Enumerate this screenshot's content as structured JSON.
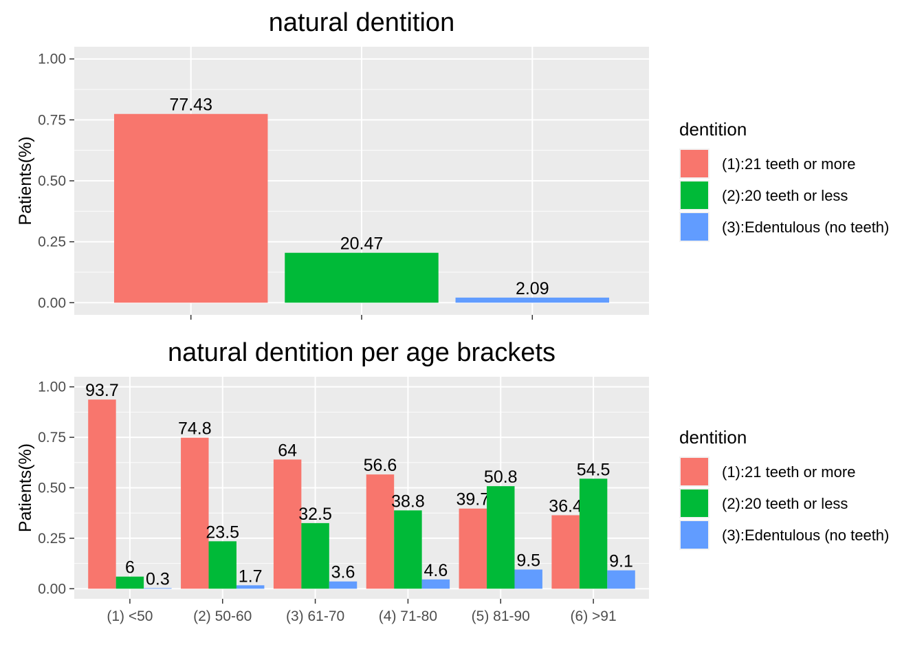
{
  "chart_data": [
    {
      "type": "bar",
      "title": "natural dentition",
      "ylabel": "Patients(%)",
      "xlabel": "",
      "ylim": [
        -0.05,
        1.05
      ],
      "yticks": [
        0,
        0.25,
        0.5,
        0.75,
        1
      ],
      "ytick_labels": [
        "0.00",
        "0.25",
        "0.50",
        "0.75",
        "1.00"
      ],
      "grid": true,
      "categories": [
        "(1):21 teeth or more",
        "(2):20 teeth or less",
        "(3):Edentulous (no teeth)"
      ],
      "values": [
        0.7743,
        0.2047,
        0.0209
      ],
      "data_labels": [
        "77.43",
        "20.47",
        "2.09"
      ],
      "colors": [
        "#F8766D",
        "#00BA38",
        "#619CFF"
      ],
      "legend": {
        "title": "dentition",
        "position": "right",
        "items": [
          "(1):21 teeth or more",
          "(2):20 teeth or less",
          "(3):Edentulous (no teeth)"
        ]
      }
    },
    {
      "type": "bar",
      "title": "natural dentition per age brackets",
      "ylabel": "Patients(%)",
      "xlabel": "",
      "ylim": [
        -0.05,
        1.05
      ],
      "yticks": [
        0,
        0.25,
        0.5,
        0.75,
        1
      ],
      "ytick_labels": [
        "0.00",
        "0.25",
        "0.50",
        "0.75",
        "1.00"
      ],
      "grid": true,
      "categories": [
        "(1) <50",
        "(2) 50-60",
        "(3) 61-70",
        "(4) 71-80",
        "(5) 81-90",
        "(6) >91"
      ],
      "series": [
        {
          "name": "(1):21 teeth or more",
          "color": "#F8766D",
          "values": [
            0.937,
            0.748,
            0.64,
            0.566,
            0.397,
            0.364
          ],
          "labels": [
            "93.7",
            "74.8",
            "64",
            "56.6",
            "39.7",
            "36.4"
          ]
        },
        {
          "name": "(2):20 teeth or less",
          "color": "#00BA38",
          "values": [
            0.06,
            0.235,
            0.325,
            0.388,
            0.508,
            0.545
          ],
          "labels": [
            "6",
            "23.5",
            "32.5",
            "38.8",
            "50.8",
            "54.5"
          ]
        },
        {
          "name": "(3):Edentulous (no teeth)",
          "color": "#619CFF",
          "values": [
            0.003,
            0.017,
            0.036,
            0.046,
            0.095,
            0.091
          ],
          "labels": [
            "0.3",
            "1.7",
            "3.6",
            "4.6",
            "9.5",
            "9.1"
          ]
        }
      ],
      "legend": {
        "title": "dentition",
        "position": "right",
        "items": [
          "(1):21 teeth or more",
          "(2):20 teeth or less",
          "(3):Edentulous (no teeth)"
        ]
      }
    }
  ]
}
